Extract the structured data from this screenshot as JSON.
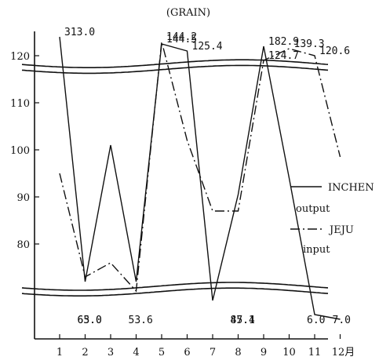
{
  "chart_data": {
    "type": "line",
    "title": "(GRAIN)",
    "x": [
      "1",
      "2",
      "3",
      "4",
      "5",
      "6",
      "7",
      "8",
      "9",
      "10",
      "11",
      "12月"
    ],
    "y_ticks": [
      "120",
      "110",
      "100",
      "90",
      "80"
    ],
    "ylim": [
      69,
      126
    ],
    "axis_break": {
      "upper_value": 118.3,
      "lower_value": 71.0
    },
    "series": [
      {
        "name": "INCHEN",
        "legend_sub": "output",
        "style": "solid",
        "values": [
          124.0,
          72.0,
          101.0,
          72.0,
          122.5,
          121.0,
          68.0,
          90.5,
          122.0,
          94.0,
          65.0,
          64.0
        ],
        "value_labels": [
          "313.0",
          "65.0",
          "",
          "53.6",
          "144.5",
          "125.4",
          "",
          "47.4",
          "182.9",
          "",
          "6.0",
          ""
        ]
      },
      {
        "name": "JEJU",
        "legend_sub": "input",
        "style": "dashdot",
        "values": [
          95.0,
          73.0,
          76.0,
          70.0,
          123.0,
          102.0,
          87.0,
          87.0,
          119.0,
          121.5,
          120.0,
          98.5
        ],
        "value_labels": [
          "",
          "63.0",
          "",
          "",
          "144.2",
          "",
          "",
          "85.1",
          "124.7",
          "139.3",
          "120.6",
          "7.0"
        ]
      }
    ],
    "grid": false,
    "legend": "right"
  }
}
